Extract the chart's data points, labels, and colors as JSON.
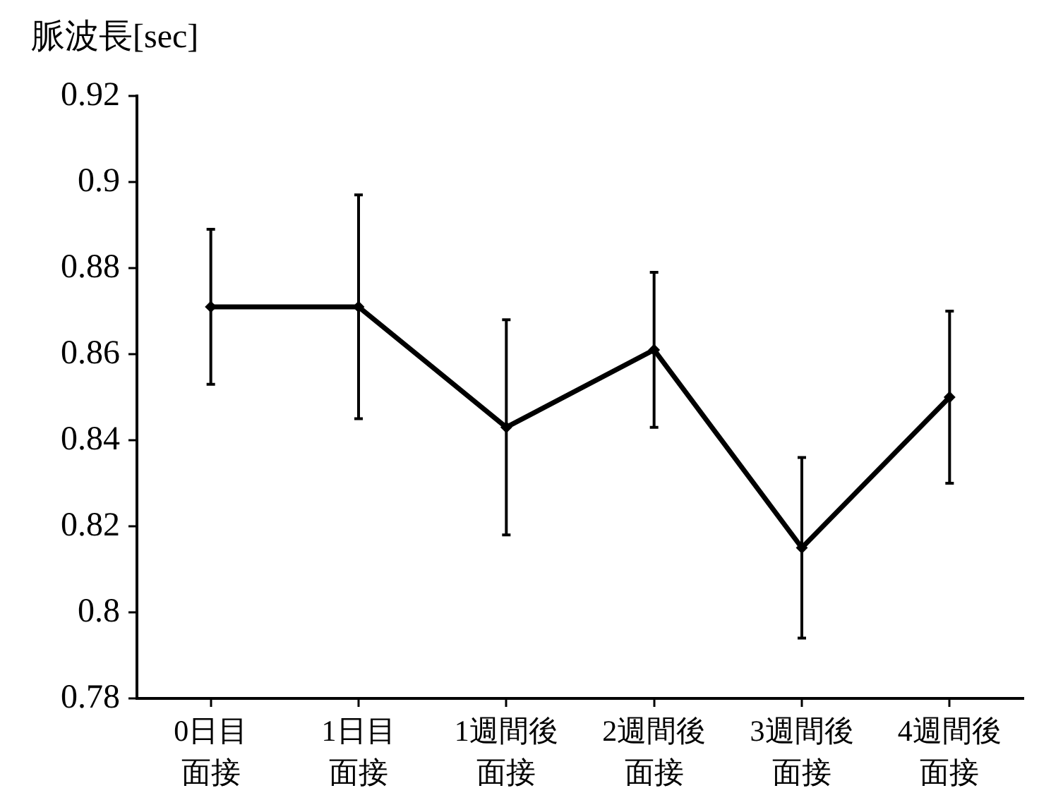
{
  "chart_data": {
    "type": "line",
    "ylabel": "脈波長[sec]",
    "categories": [
      "0日目面接",
      "1日目面接",
      "1週間後面接",
      "2週間後面接",
      "3週間後面接",
      "4週間後面接"
    ],
    "values": [
      0.871,
      0.871,
      0.843,
      0.861,
      0.815,
      0.85
    ],
    "errors": [
      0.018,
      0.026,
      0.025,
      0.018,
      0.021,
      0.02
    ],
    "color": "#000000",
    "ylim": [
      0.78,
      0.92
    ],
    "yticks": [
      0.78,
      0.8,
      0.82,
      0.84,
      0.86,
      0.88,
      0.9,
      0.92
    ],
    "marker": "diamond",
    "line_style": "solid"
  }
}
